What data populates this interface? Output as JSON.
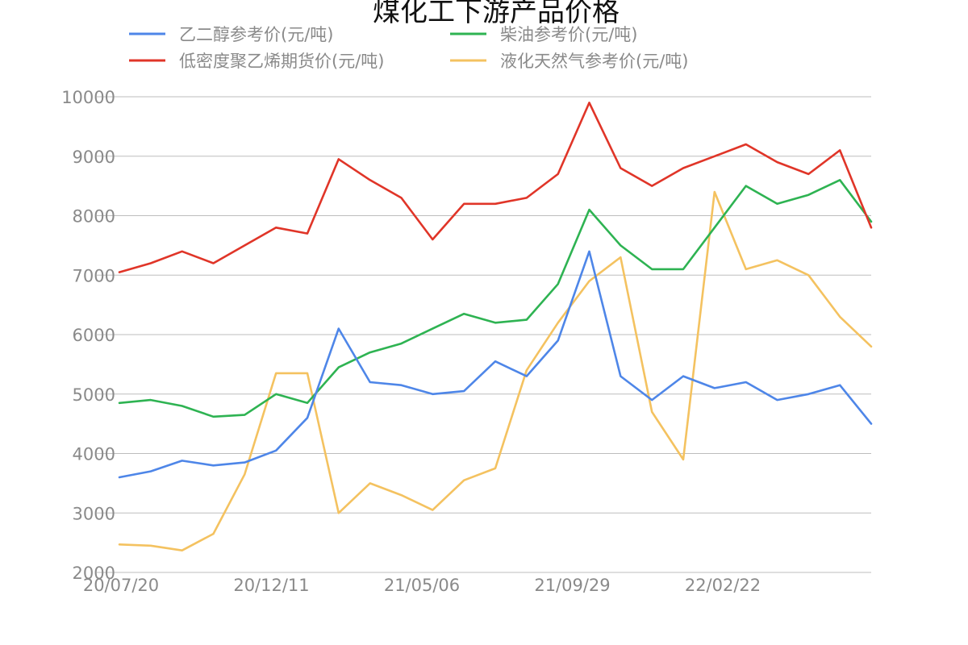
{
  "chart_data": {
    "type": "line",
    "title": "煤化工下游产品价格",
    "xlabel": "",
    "ylabel": "",
    "ylim": [
      2000,
      10000
    ],
    "yticks": [
      2000,
      3000,
      4000,
      5000,
      6000,
      7000,
      8000,
      9000,
      10000
    ],
    "xtick_labels": [
      "20/07/20",
      "20/12/11",
      "21/05/06",
      "21/09/29",
      "22/02/22"
    ],
    "grid": "horizontal",
    "legend_position": "top",
    "x": [
      "2020-07",
      "2020-08",
      "2020-09",
      "2020-10",
      "2020-11",
      "2020-12",
      "2021-01",
      "2021-02",
      "2021-03",
      "2021-04",
      "2021-05",
      "2021-06",
      "2021-07",
      "2021-08",
      "2021-09",
      "2021-10",
      "2021-11",
      "2021-12",
      "2022-01",
      "2022-02",
      "2022-03",
      "2022-04",
      "2022-05",
      "2022-06",
      "2022-07"
    ],
    "series": [
      {
        "name": "乙二醇参考价(元/吨)",
        "color": "#4e86e8",
        "values": [
          3600,
          3700,
          3880,
          3800,
          3850,
          4050,
          4600,
          6100,
          5200,
          5150,
          5000,
          5050,
          5550,
          5300,
          5900,
          7400,
          5300,
          4900,
          5300,
          5100,
          5200,
          4900,
          5000,
          5150,
          4500
        ]
      },
      {
        "name": "柴油参考价(元/吨)",
        "color": "#2eb352",
        "values": [
          4850,
          4900,
          4800,
          4620,
          4650,
          5000,
          4850,
          5450,
          5700,
          5850,
          6100,
          6350,
          6200,
          6250,
          6850,
          8100,
          7500,
          7100,
          7100,
          7800,
          8500,
          8200,
          8350,
          8600,
          7900
        ]
      },
      {
        "name": "低密度聚乙烯期货价(元/吨)",
        "color": "#e03528",
        "values": [
          7050,
          7200,
          7400,
          7200,
          7500,
          7800,
          7700,
          8950,
          8600,
          8300,
          7600,
          8200,
          8200,
          8300,
          8700,
          9900,
          8800,
          8500,
          8800,
          9000,
          9200,
          8900,
          8700,
          9100,
          7800
        ]
      },
      {
        "name": "液化天然气参考价(元/吨)",
        "color": "#f4c260",
        "values": [
          2470,
          2450,
          2370,
          2650,
          3650,
          5350,
          5350,
          3000,
          3500,
          3300,
          3050,
          3550,
          3750,
          5400,
          6200,
          6900,
          7300,
          4700,
          3900,
          8400,
          7100,
          7250,
          7000,
          6300,
          5800
        ]
      }
    ]
  }
}
